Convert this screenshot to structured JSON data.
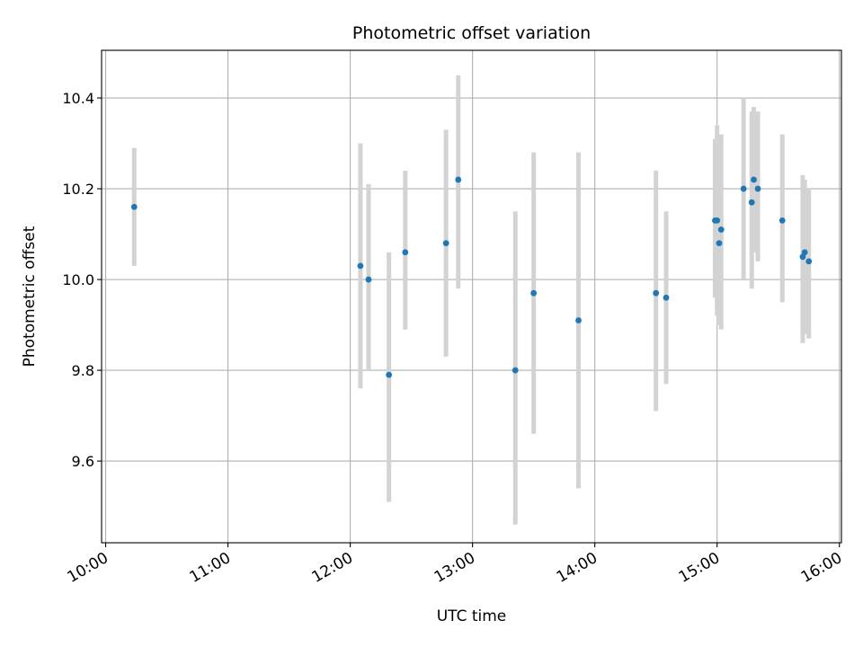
{
  "chart_data": {
    "type": "scatter",
    "title": "Photometric offset variation",
    "xlabel": "UTC time",
    "ylabel": "Photometric offset",
    "x_axis": "time (UTC), hours of day",
    "xlim": [
      "09:58",
      "16:01"
    ],
    "ylim": [
      9.42,
      10.505
    ],
    "x_ticks": [
      "10:00",
      "11:00",
      "12:00",
      "13:00",
      "14:00",
      "15:00",
      "16:00"
    ],
    "y_ticks": [
      "9.6",
      "9.8",
      "10.0",
      "10.2",
      "10.4"
    ],
    "grid": true,
    "legend": "none",
    "colors": {
      "point": "#1f77b4",
      "errorbar": "#d3d3d3",
      "grid": "#b0b0b0"
    },
    "points": [
      {
        "time": "10:14",
        "y": 10.16,
        "ylow": 10.03,
        "yhigh": 10.29
      },
      {
        "time": "12:05",
        "y": 10.03,
        "ylow": 9.76,
        "yhigh": 10.3
      },
      {
        "time": "12:09",
        "y": 10.0,
        "ylow": 9.8,
        "yhigh": 10.21
      },
      {
        "time": "12:19",
        "y": 9.79,
        "ylow": 9.51,
        "yhigh": 10.06
      },
      {
        "time": "12:27",
        "y": 10.06,
        "ylow": 9.89,
        "yhigh": 10.24
      },
      {
        "time": "12:47",
        "y": 10.08,
        "ylow": 9.83,
        "yhigh": 10.33
      },
      {
        "time": "12:53",
        "y": 10.22,
        "ylow": 9.98,
        "yhigh": 10.45
      },
      {
        "time": "13:21",
        "y": 9.8,
        "ylow": 9.46,
        "yhigh": 10.15
      },
      {
        "time": "13:30",
        "y": 9.97,
        "ylow": 9.66,
        "yhigh": 10.28
      },
      {
        "time": "13:52",
        "y": 9.91,
        "ylow": 9.54,
        "yhigh": 10.28
      },
      {
        "time": "14:30",
        "y": 9.97,
        "ylow": 9.71,
        "yhigh": 10.24
      },
      {
        "time": "14:35",
        "y": 9.96,
        "ylow": 9.77,
        "yhigh": 10.15
      },
      {
        "time": "14:59",
        "y": 10.13,
        "ylow": 9.96,
        "yhigh": 10.31
      },
      {
        "time": "15:00",
        "y": 10.13,
        "ylow": 9.92,
        "yhigh": 10.34
      },
      {
        "time": "15:01",
        "y": 10.08,
        "ylow": 9.9,
        "yhigh": 10.27
      },
      {
        "time": "15:02",
        "y": 10.11,
        "ylow": 9.89,
        "yhigh": 10.32
      },
      {
        "time": "15:13",
        "y": 10.2,
        "ylow": 10.0,
        "yhigh": 10.4
      },
      {
        "time": "15:17",
        "y": 10.17,
        "ylow": 9.98,
        "yhigh": 10.37
      },
      {
        "time": "15:18",
        "y": 10.22,
        "ylow": 10.06,
        "yhigh": 10.38
      },
      {
        "time": "15:20",
        "y": 10.2,
        "ylow": 10.04,
        "yhigh": 10.37
      },
      {
        "time": "15:32",
        "y": 10.13,
        "ylow": 9.95,
        "yhigh": 10.32
      },
      {
        "time": "15:42",
        "y": 10.05,
        "ylow": 9.86,
        "yhigh": 10.23
      },
      {
        "time": "15:43",
        "y": 10.06,
        "ylow": 9.88,
        "yhigh": 10.22
      },
      {
        "time": "15:45",
        "y": 10.04,
        "ylow": 9.87,
        "yhigh": 10.2
      }
    ]
  }
}
